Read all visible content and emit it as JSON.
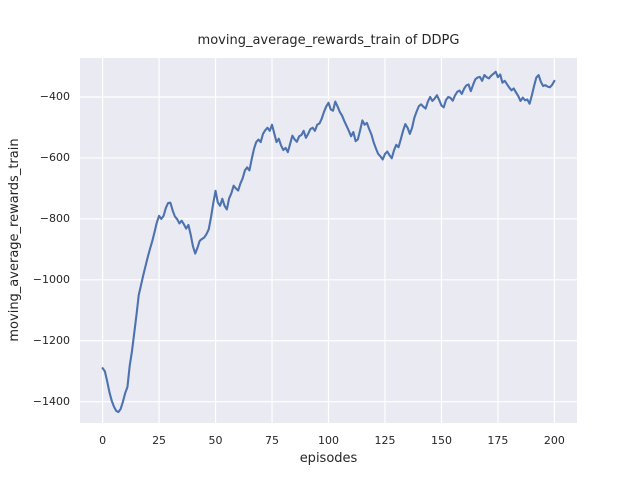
{
  "chart_data": {
    "type": "line",
    "title": "moving_average_rewards_train of DDPG",
    "xlabel": "episodes",
    "ylabel": "moving_average_rewards_train",
    "xlim": [
      -10,
      210
    ],
    "ylim": [
      -1470,
      -272
    ],
    "grid": true,
    "legend": "none",
    "xticks": {
      "values": [
        0,
        25,
        50,
        75,
        100,
        125,
        150,
        175,
        200
      ],
      "labels": [
        "0",
        "25",
        "50",
        "75",
        "100",
        "125",
        "150",
        "175",
        "200"
      ]
    },
    "yticks": {
      "values": [
        -400,
        -600,
        -800,
        -1000,
        -1200,
        -1400
      ],
      "labels": [
        "−400",
        "−600",
        "−800",
        "−1000",
        "−1200",
        "−1400"
      ]
    },
    "style": {
      "figure_bg": "#ffffff",
      "plot_bg": "#eaeaf2",
      "grid_color": "#ffffff",
      "line_color": "#4c72b0",
      "text_color": "#262626",
      "line_width": 2.1,
      "grid_width": 1.2
    },
    "series": [
      {
        "name": "moving_average_rewards_train",
        "color": "#4c72b0",
        "x_start": 0,
        "x_step": 1,
        "y": [
          -1290,
          -1300,
          -1332,
          -1368,
          -1396,
          -1416,
          -1430,
          -1434,
          -1424,
          -1400,
          -1372,
          -1352,
          -1282,
          -1235,
          -1175,
          -1115,
          -1050,
          -1018,
          -985,
          -955,
          -925,
          -898,
          -873,
          -843,
          -812,
          -790,
          -800,
          -790,
          -764,
          -748,
          -747,
          -772,
          -792,
          -801,
          -815,
          -806,
          -818,
          -832,
          -820,
          -852,
          -890,
          -914,
          -895,
          -872,
          -866,
          -861,
          -850,
          -834,
          -794,
          -748,
          -708,
          -746,
          -757,
          -734,
          -757,
          -769,
          -733,
          -716,
          -691,
          -700,
          -707,
          -684,
          -667,
          -641,
          -631,
          -641,
          -604,
          -571,
          -548,
          -540,
          -548,
          -521,
          -509,
          -501,
          -511,
          -491,
          -520,
          -548,
          -537,
          -559,
          -574,
          -567,
          -581,
          -554,
          -527,
          -539,
          -547,
          -529,
          -525,
          -511,
          -534,
          -521,
          -505,
          -501,
          -511,
          -491,
          -487,
          -471,
          -449,
          -431,
          -419,
          -441,
          -445,
          -415,
          -431,
          -449,
          -461,
          -479,
          -495,
          -511,
          -529,
          -515,
          -545,
          -539,
          -509,
          -477,
          -491,
          -485,
          -505,
          -523,
          -549,
          -569,
          -587,
          -595,
          -605,
          -587,
          -579,
          -591,
          -601,
          -575,
          -557,
          -565,
          -539,
          -511,
          -489,
          -501,
          -521,
          -501,
          -468,
          -448,
          -430,
          -424,
          -432,
          -438,
          -415,
          -400,
          -413,
          -405,
          -394,
          -410,
          -428,
          -434,
          -410,
          -400,
          -403,
          -412,
          -395,
          -383,
          -379,
          -390,
          -373,
          -362,
          -359,
          -381,
          -360,
          -342,
          -336,
          -334,
          -347,
          -328,
          -335,
          -339,
          -330,
          -324,
          -317,
          -335,
          -326,
          -353,
          -347,
          -358,
          -369,
          -378,
          -372,
          -385,
          -397,
          -413,
          -402,
          -411,
          -408,
          -422,
          -395,
          -364,
          -336,
          -328,
          -350,
          -364,
          -361,
          -366,
          -368,
          -360,
          -347
        ]
      }
    ]
  }
}
